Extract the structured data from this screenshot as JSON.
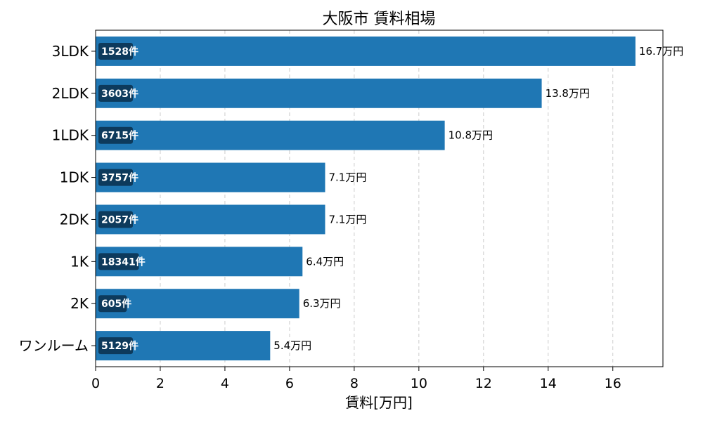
{
  "chart_data": {
    "type": "bar",
    "orientation": "horizontal",
    "title": "大阪市 賃料相場",
    "xlabel": "賃料[万円]",
    "ylabel": "",
    "xlim": [
      0,
      17.55
    ],
    "xticks": [
      0,
      2,
      4,
      6,
      8,
      10,
      12,
      14,
      16
    ],
    "grid": "x-dashed",
    "bar_color": "#1f77b4",
    "count_badge_color": "#0d3a5c",
    "value_unit": "万円",
    "count_unit": "件",
    "categories": [
      "3LDK",
      "2LDK",
      "1LDK",
      "1DK",
      "2DK",
      "1K",
      "2K",
      "ワンルーム"
    ],
    "values": [
      16.7,
      13.8,
      10.8,
      7.1,
      7.1,
      6.4,
      6.3,
      5.4
    ],
    "counts": [
      1528,
      3603,
      6715,
      3757,
      2057,
      18341,
      605,
      5129
    ],
    "value_labels": [
      "16.7万円",
      "13.8万円",
      "10.8万円",
      "7.1万円",
      "7.1万円",
      "6.4万円",
      "6.3万円",
      "5.4万円"
    ],
    "count_labels": [
      "1528件",
      "3603件",
      "6715件",
      "3757件",
      "2057件",
      "18341件",
      "605件",
      "5129件"
    ]
  }
}
